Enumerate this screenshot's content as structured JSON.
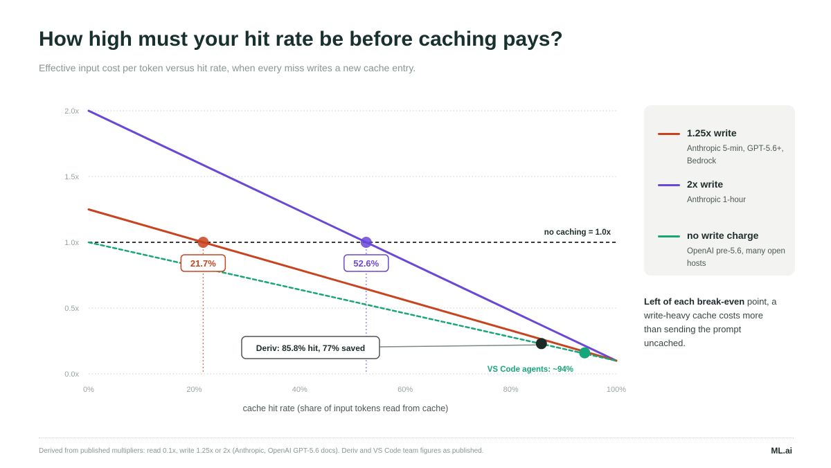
{
  "header": {
    "title": "How high must your hit rate be before caching pays?",
    "subtitle": "Effective input cost per token versus hit rate, when every miss writes a new cache entry."
  },
  "chart_data": {
    "type": "line",
    "xlabel": "cache hit rate (share of input tokens read from cache)",
    "ylabel": "",
    "xlim": [
      0,
      100
    ],
    "ylim": [
      0,
      2.0
    ],
    "x_ticks": [
      "0%",
      "20%",
      "40%",
      "60%",
      "80%",
      "100%"
    ],
    "x_tick_values": [
      0,
      20,
      40,
      60,
      80,
      100
    ],
    "y_ticks": [
      "0.0x",
      "0.5x",
      "1.0x",
      "1.5x",
      "2.0x"
    ],
    "y_tick_values": [
      0,
      0.5,
      1.0,
      1.5,
      2.0
    ],
    "grid": "horizontal dotted",
    "series": [
      {
        "name": "1.25x write",
        "color": "#c8431f",
        "style": "solid",
        "x": [
          0,
          100
        ],
        "y": [
          1.25,
          0.1
        ]
      },
      {
        "name": "2x write",
        "color": "#6a47d6",
        "style": "solid",
        "x": [
          0,
          100
        ],
        "y": [
          2.0,
          0.1
        ]
      },
      {
        "name": "no write charge",
        "color": "#17a67a",
        "style": "dashed",
        "x": [
          0,
          100
        ],
        "y": [
          1.0,
          0.1
        ]
      }
    ],
    "reference_line": {
      "label": "no caching = 1.0x",
      "y": 1.0,
      "color": "#3a3a3a"
    },
    "break_even": [
      {
        "label": "21.7%",
        "x": 21.7,
        "y": 1.0,
        "color": "#c8431f"
      },
      {
        "label": "52.6%",
        "x": 52.6,
        "y": 1.0,
        "color": "#6a47d6"
      }
    ],
    "annotations": [
      {
        "label": "Deriv: 85.8% hit, 77% saved",
        "x": 85.8,
        "y": 0.23,
        "color": "#1b2a27"
      },
      {
        "label": "VS Code agents: ~94%",
        "x": 94,
        "y": 0.16,
        "color": "#17a67a"
      }
    ]
  },
  "legend": {
    "placement": "right",
    "items": [
      {
        "name": "1.25x write",
        "desc": "Anthropic 5-min, GPT-5.6+, Bedrock",
        "color": "#c8431f"
      },
      {
        "name": "2x write",
        "desc": "Anthropic 1-hour",
        "color": "#6a47d6"
      },
      {
        "name": "no write charge",
        "desc": "OpenAI pre-5.6, many open hosts",
        "color": "#17a67a"
      }
    ]
  },
  "note": {
    "bold": "Left of each break-even",
    "rest": "point, a write-heavy cache costs more than sending the prompt uncached."
  },
  "footer": {
    "text": "Derived from published multipliers: read 0.1x, write 1.25x or 2x (Anthropic, OpenAI GPT-5.6 docs). Deriv and VS Code team figures as published.",
    "brand": "ML.ai"
  }
}
